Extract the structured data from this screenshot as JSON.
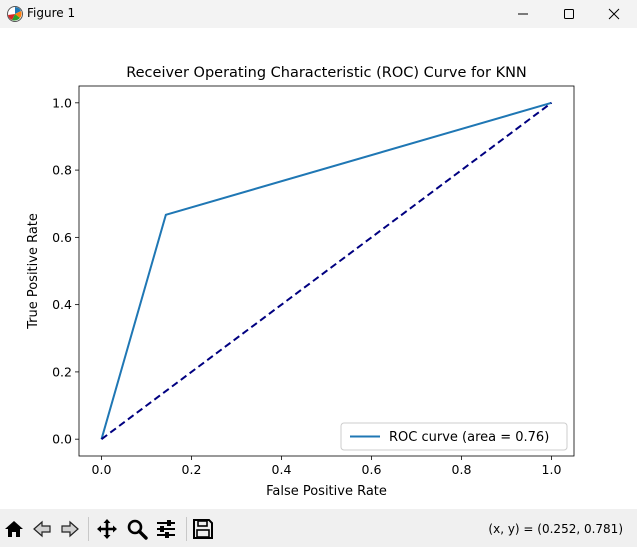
{
  "window": {
    "title": "Figure 1",
    "icon": "matplotlib-logo-icon",
    "controls": [
      "minimize-icon",
      "maximize-icon",
      "close-icon"
    ]
  },
  "chart_data": {
    "type": "line",
    "title": "Receiver Operating Characteristic (ROC) Curve for KNN",
    "xlabel": "False Positive Rate",
    "ylabel": "True Positive Rate",
    "xlim": [
      -0.05,
      1.05
    ],
    "ylim": [
      -0.05,
      1.05
    ],
    "xticks": [
      "0.0",
      "0.2",
      "0.4",
      "0.6",
      "0.8",
      "1.0"
    ],
    "yticks": [
      "0.0",
      "0.2",
      "0.4",
      "0.6",
      "0.8",
      "1.0"
    ],
    "grid": false,
    "legend_position": "lower-right",
    "series": [
      {
        "name": "ROC curve (area = 0.76)",
        "color": "#1f77b4",
        "style": "solid",
        "x": [
          0.0,
          0.143,
          1.0
        ],
        "y": [
          0.0,
          0.667,
          1.0
        ]
      },
      {
        "color": "#000080",
        "style": "dashed",
        "x": [
          0.0,
          1.0
        ],
        "y": [
          0.0,
          1.0
        ]
      }
    ]
  },
  "toolbar": {
    "tools": [
      "home-icon",
      "back-icon",
      "forward-icon",
      "pan-icon",
      "zoom-icon",
      "configure-subplots-icon",
      "save-icon"
    ],
    "coords_text": "(x, y) = (0.252, 0.781)"
  }
}
